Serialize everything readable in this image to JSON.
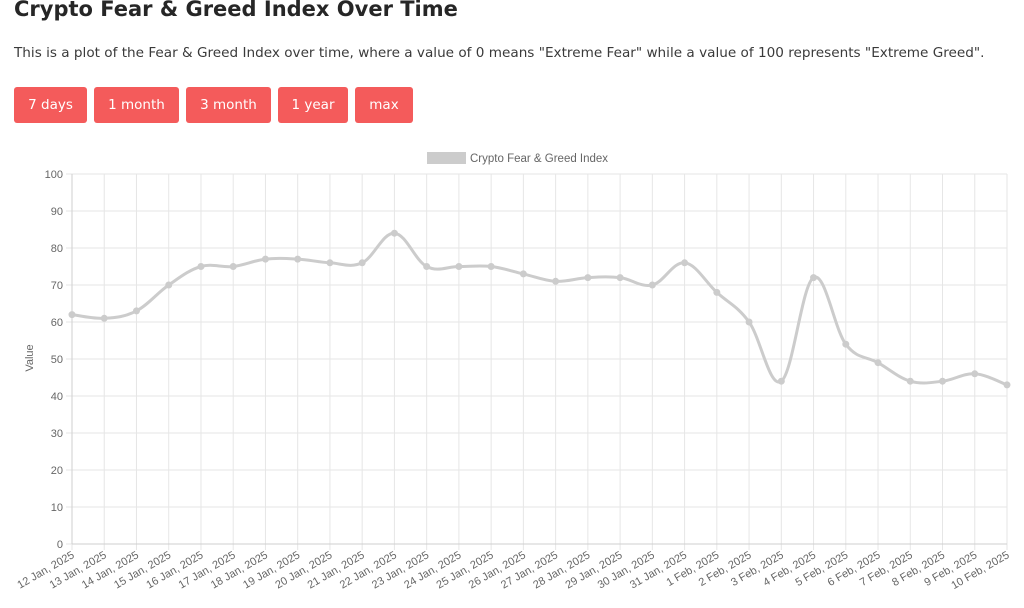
{
  "page": {
    "title": "Crypto Fear & Greed Index Over Time",
    "description": "This is a plot of the Fear & Greed Index over time, where a value of 0 means \"Extreme Fear\" while a value of 100 represents \"Extreme Greed\"."
  },
  "range_buttons": [
    {
      "label": "7 days"
    },
    {
      "label": "1 month"
    },
    {
      "label": "3 month"
    },
    {
      "label": "1 year"
    },
    {
      "label": "max"
    }
  ],
  "colors": {
    "button_bg": "#f45b5b",
    "line": "#cccccc",
    "grid": "#e6e6e6"
  },
  "chart_data": {
    "type": "line",
    "legend_position": "top",
    "grid": true,
    "xlabel": "",
    "ylabel": "Value",
    "ylim": [
      0,
      100
    ],
    "yticks": [
      0,
      10,
      20,
      30,
      40,
      50,
      60,
      70,
      80,
      90,
      100
    ],
    "categories": [
      "12 Jan, 2025",
      "13 Jan, 2025",
      "14 Jan, 2025",
      "15 Jan, 2025",
      "16 Jan, 2025",
      "17 Jan, 2025",
      "18 Jan, 2025",
      "19 Jan, 2025",
      "20 Jan, 2025",
      "21 Jan, 2025",
      "22 Jan, 2025",
      "23 Jan, 2025",
      "24 Jan, 2025",
      "25 Jan, 2025",
      "26 Jan, 2025",
      "27 Jan, 2025",
      "28 Jan, 2025",
      "29 Jan, 2025",
      "30 Jan, 2025",
      "31 Jan, 2025",
      "1 Feb, 2025",
      "2 Feb, 2025",
      "3 Feb, 2025",
      "4 Feb, 2025",
      "5 Feb, 2025",
      "6 Feb, 2025",
      "7 Feb, 2025",
      "8 Feb, 2025",
      "9 Feb, 2025",
      "10 Feb, 2025"
    ],
    "series": [
      {
        "name": "Crypto Fear & Greed Index",
        "color": "#cccccc",
        "values": [
          62,
          61,
          63,
          70,
          75,
          75,
          77,
          77,
          76,
          76,
          84,
          75,
          75,
          75,
          73,
          71,
          72,
          72,
          70,
          76,
          68,
          60,
          44,
          72,
          54,
          49,
          44,
          44,
          46,
          43
        ]
      }
    ]
  }
}
